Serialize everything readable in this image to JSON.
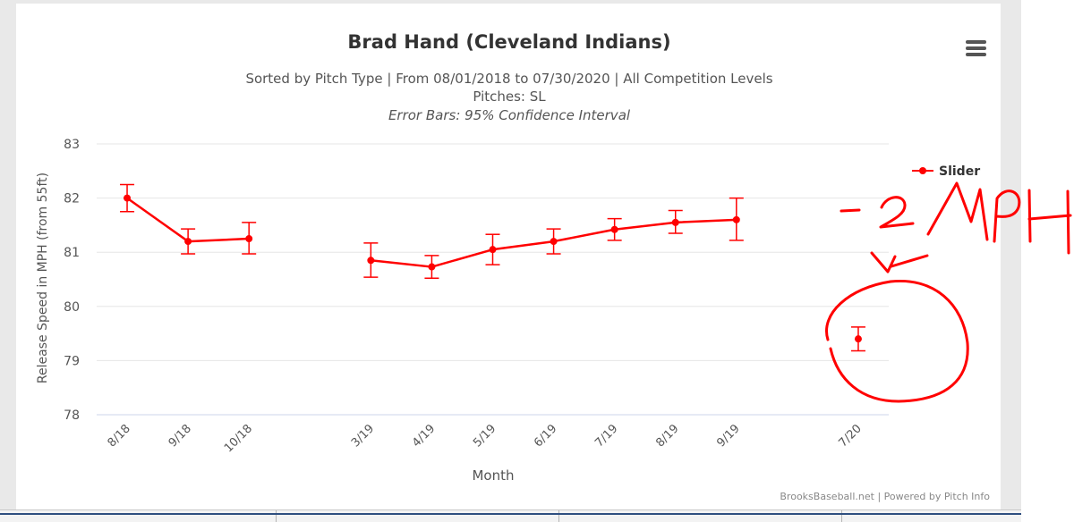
{
  "chart_data": {
    "type": "line",
    "title": "Brad Hand (Cleveland Indians)",
    "subtitle": "Sorted by Pitch Type | From 08/01/2018 to 07/30/2020 | All Competition Levels",
    "subtitle2": "Pitches: SL",
    "subtitle3": "Error Bars: 95% Confidence Interval",
    "xlabel": "Month",
    "ylabel": "Release Speed in MPH (from 55ft)",
    "ylim": [
      78,
      83
    ],
    "yticks": [
      "83",
      "82",
      "81",
      "80",
      "79",
      "78"
    ],
    "categories": [
      "8/18",
      "9/18",
      "10/18",
      "",
      "3/19",
      "4/19",
      "5/19",
      "6/19",
      "7/19",
      "8/19",
      "9/19",
      "",
      "7/20"
    ],
    "series": [
      {
        "name": "Slider",
        "color": "#ff0000",
        "values": [
          82.0,
          81.2,
          81.25,
          null,
          80.85,
          80.73,
          81.05,
          81.2,
          81.42,
          81.55,
          81.6,
          null,
          79.4
        ],
        "err_low": [
          81.75,
          80.97,
          80.97,
          null,
          80.54,
          80.52,
          80.77,
          80.97,
          81.22,
          81.35,
          81.22,
          null,
          79.18
        ],
        "err_high": [
          82.25,
          81.43,
          81.55,
          null,
          81.17,
          80.94,
          81.33,
          81.43,
          81.62,
          81.77,
          82.0,
          null,
          79.62
        ]
      }
    ],
    "legend_position": "right",
    "credits": "BrooksBaseball.net | Powered by Pitch Info",
    "grid": true
  },
  "annotation": {
    "handwritten_text": "-2MPH",
    "color": "#ff0000"
  },
  "menu": {
    "icon": "hamburger-menu-icon"
  }
}
